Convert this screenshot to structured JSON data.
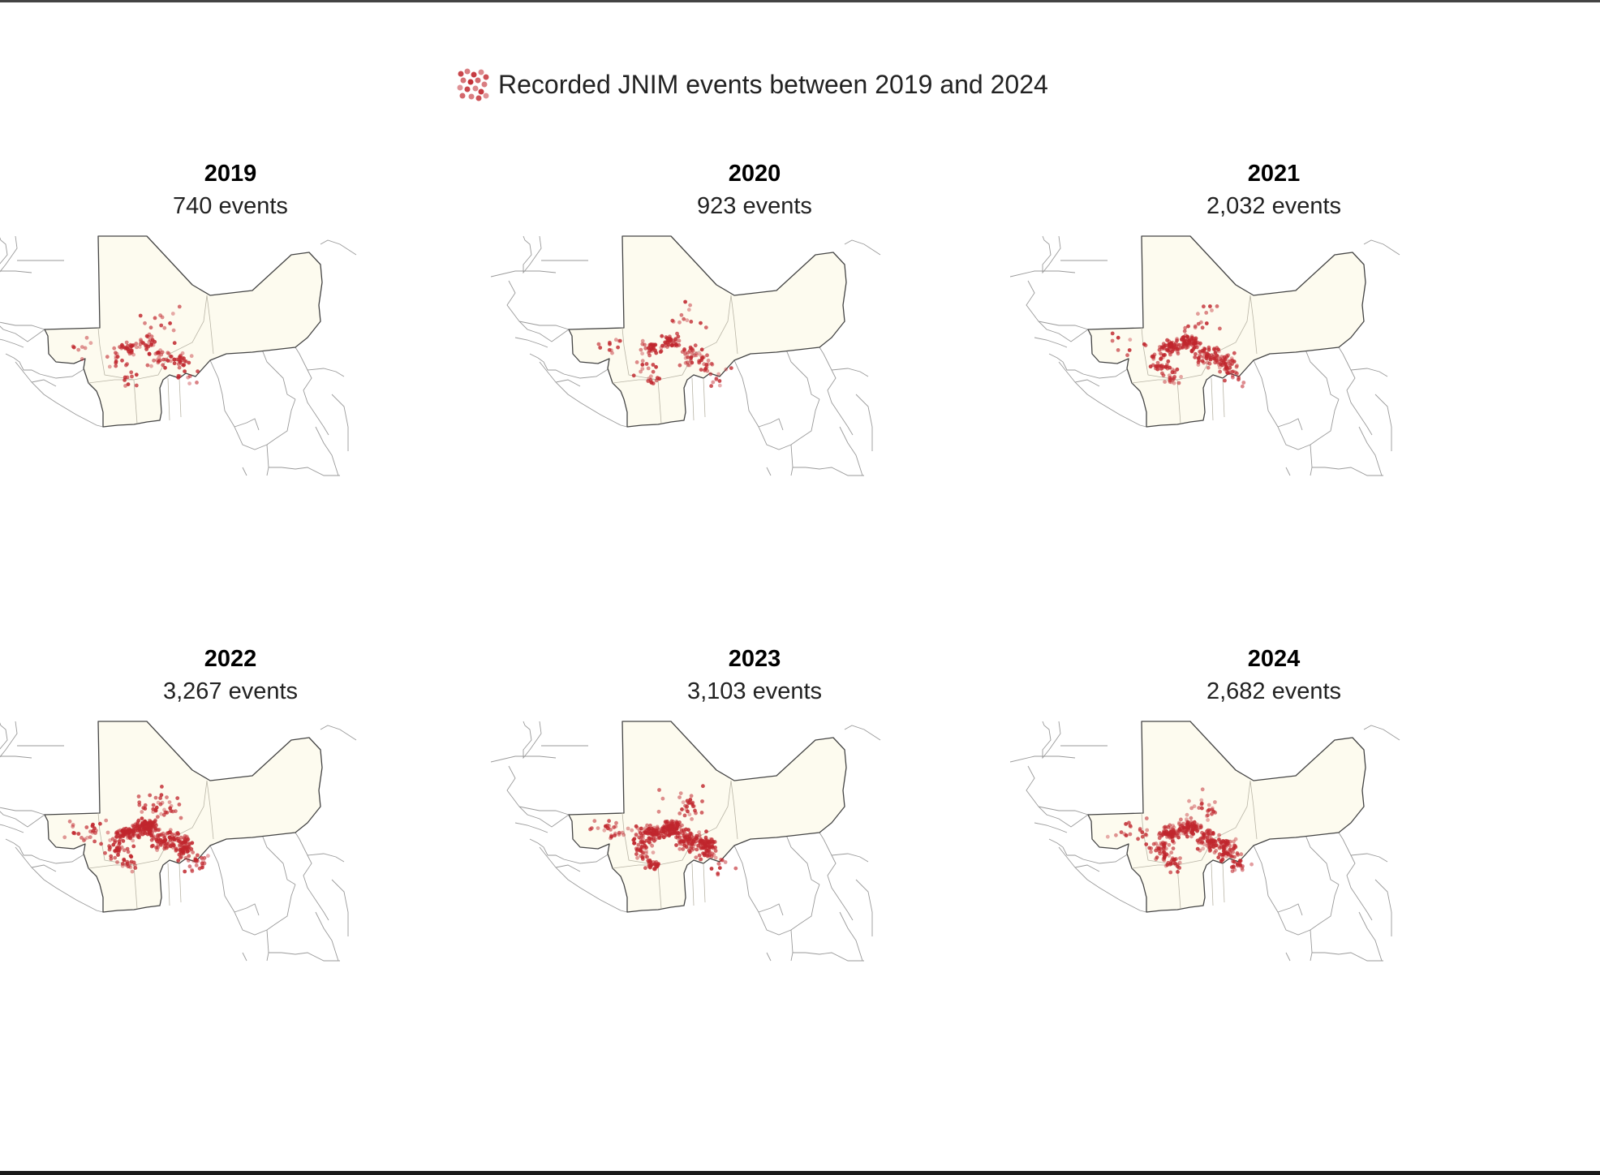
{
  "legend": {
    "label": "Recorded JNIM events between 2019 and 2024",
    "swatch_color": "#c0262d"
  },
  "colors": {
    "event_dot": "#c0262d",
    "sahel_fill": "#fdfbef",
    "sahel_border": "#444444",
    "neighbor_border": "#9a9a9a"
  },
  "panels": [
    {
      "year": "2019",
      "count": "740 events",
      "events": 740
    },
    {
      "year": "2020",
      "count": "923 events",
      "events": 923
    },
    {
      "year": "2021",
      "count": "2,032 events",
      "events": 2032
    },
    {
      "year": "2022",
      "count": "3,267 events",
      "events": 3267
    },
    {
      "year": "2023",
      "count": "3,103 events",
      "events": 3103
    },
    {
      "year": "2024",
      "count": "2,682 events",
      "events": 2682
    }
  ]
}
